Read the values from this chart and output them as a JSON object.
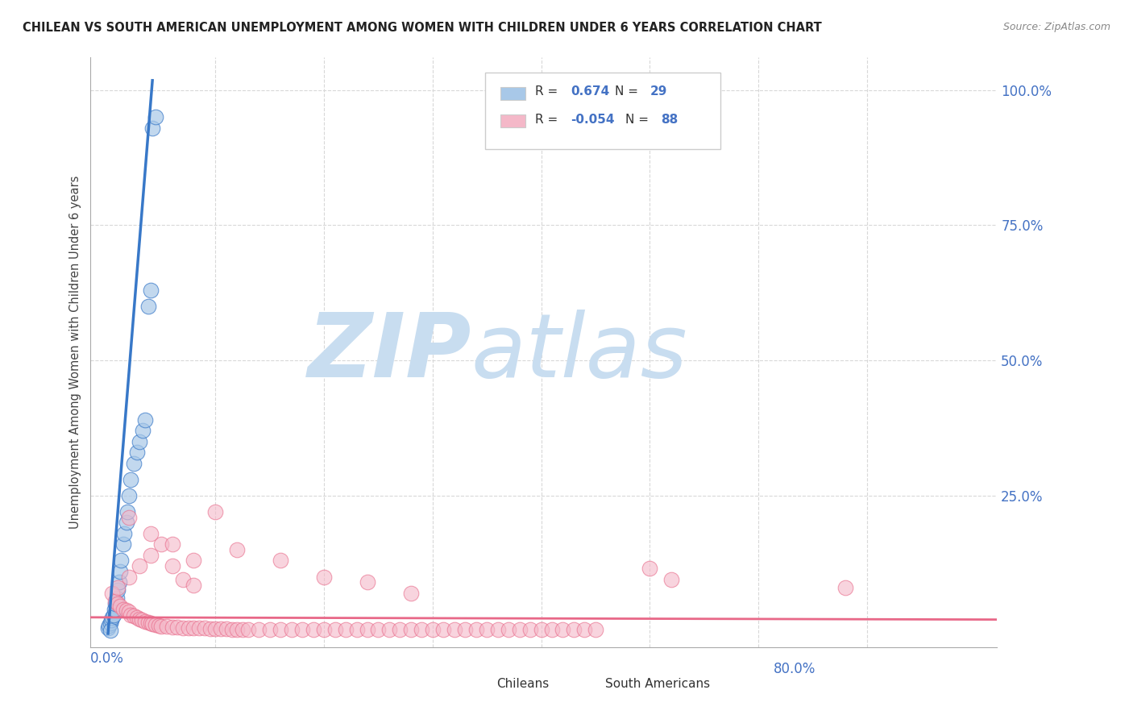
{
  "title": "CHILEAN VS SOUTH AMERICAN UNEMPLOYMENT AMONG WOMEN WITH CHILDREN UNDER 6 YEARS CORRELATION CHART",
  "source": "Source: ZipAtlas.com",
  "ylabel": "Unemployment Among Women with Children Under 6 years",
  "xlim": [
    -0.015,
    0.82
  ],
  "ylim": [
    -0.03,
    1.06
  ],
  "color_blue": "#a8c8e8",
  "color_pink": "#f4b8c8",
  "color_blue_line": "#3878c8",
  "color_pink_line": "#e86888",
  "color_blue_text": "#4472c4",
  "watermark_zip": "ZIP",
  "watermark_atlas": "atlas",
  "watermark_color": "#c8ddf0",
  "background_color": "#ffffff",
  "grid_color": "#d8d8d8",
  "grid_style": "--",
  "legend_label1": "R = ",
  "legend_val1": " 0.674",
  "legend_n1_label": "  N = ",
  "legend_n1_val": "29",
  "legend_label2": "R = ",
  "legend_val2": "-0.054",
  "legend_n2_label": "  N = ",
  "legend_n2_val": "88",
  "chilean_x": [
    0.001,
    0.002,
    0.003,
    0.004,
    0.005,
    0.006,
    0.007,
    0.008,
    0.009,
    0.01,
    0.011,
    0.012,
    0.013,
    0.015,
    0.016,
    0.018,
    0.019,
    0.02,
    0.022,
    0.025,
    0.028,
    0.03,
    0.033,
    0.035,
    0.038,
    0.04,
    0.042,
    0.045,
    0.003
  ],
  "chilean_y": [
    0.005,
    0.01,
    0.015,
    0.02,
    0.025,
    0.03,
    0.04,
    0.05,
    0.06,
    0.075,
    0.09,
    0.11,
    0.13,
    0.16,
    0.18,
    0.2,
    0.22,
    0.25,
    0.28,
    0.31,
    0.33,
    0.35,
    0.37,
    0.39,
    0.6,
    0.63,
    0.93,
    0.95,
    0.001
  ],
  "sa_x": [
    0.005,
    0.008,
    0.01,
    0.012,
    0.015,
    0.018,
    0.02,
    0.022,
    0.025,
    0.028,
    0.03,
    0.032,
    0.035,
    0.038,
    0.04,
    0.042,
    0.045,
    0.048,
    0.05,
    0.055,
    0.06,
    0.065,
    0.07,
    0.075,
    0.08,
    0.085,
    0.09,
    0.095,
    0.1,
    0.105,
    0.11,
    0.115,
    0.12,
    0.125,
    0.13,
    0.14,
    0.15,
    0.16,
    0.17,
    0.18,
    0.19,
    0.2,
    0.21,
    0.22,
    0.23,
    0.24,
    0.25,
    0.26,
    0.27,
    0.28,
    0.29,
    0.3,
    0.31,
    0.32,
    0.33,
    0.34,
    0.35,
    0.36,
    0.37,
    0.38,
    0.39,
    0.4,
    0.41,
    0.42,
    0.43,
    0.44,
    0.45,
    0.01,
    0.02,
    0.03,
    0.04,
    0.05,
    0.06,
    0.07,
    0.08,
    0.12,
    0.16,
    0.2,
    0.24,
    0.28,
    0.5,
    0.52,
    0.68,
    0.02,
    0.04,
    0.06,
    0.08,
    0.1
  ],
  "sa_y": [
    0.07,
    0.055,
    0.05,
    0.045,
    0.04,
    0.038,
    0.035,
    0.03,
    0.028,
    0.025,
    0.022,
    0.02,
    0.018,
    0.016,
    0.015,
    0.013,
    0.012,
    0.01,
    0.009,
    0.008,
    0.007,
    0.007,
    0.006,
    0.006,
    0.005,
    0.005,
    0.005,
    0.004,
    0.004,
    0.004,
    0.004,
    0.003,
    0.003,
    0.003,
    0.003,
    0.003,
    0.003,
    0.003,
    0.003,
    0.003,
    0.003,
    0.003,
    0.003,
    0.003,
    0.003,
    0.003,
    0.003,
    0.003,
    0.003,
    0.003,
    0.003,
    0.003,
    0.003,
    0.003,
    0.003,
    0.003,
    0.003,
    0.003,
    0.003,
    0.003,
    0.003,
    0.003,
    0.003,
    0.003,
    0.003,
    0.003,
    0.003,
    0.08,
    0.1,
    0.12,
    0.14,
    0.16,
    0.12,
    0.095,
    0.085,
    0.15,
    0.13,
    0.1,
    0.09,
    0.07,
    0.115,
    0.095,
    0.08,
    0.21,
    0.18,
    0.16,
    0.13,
    0.22
  ]
}
